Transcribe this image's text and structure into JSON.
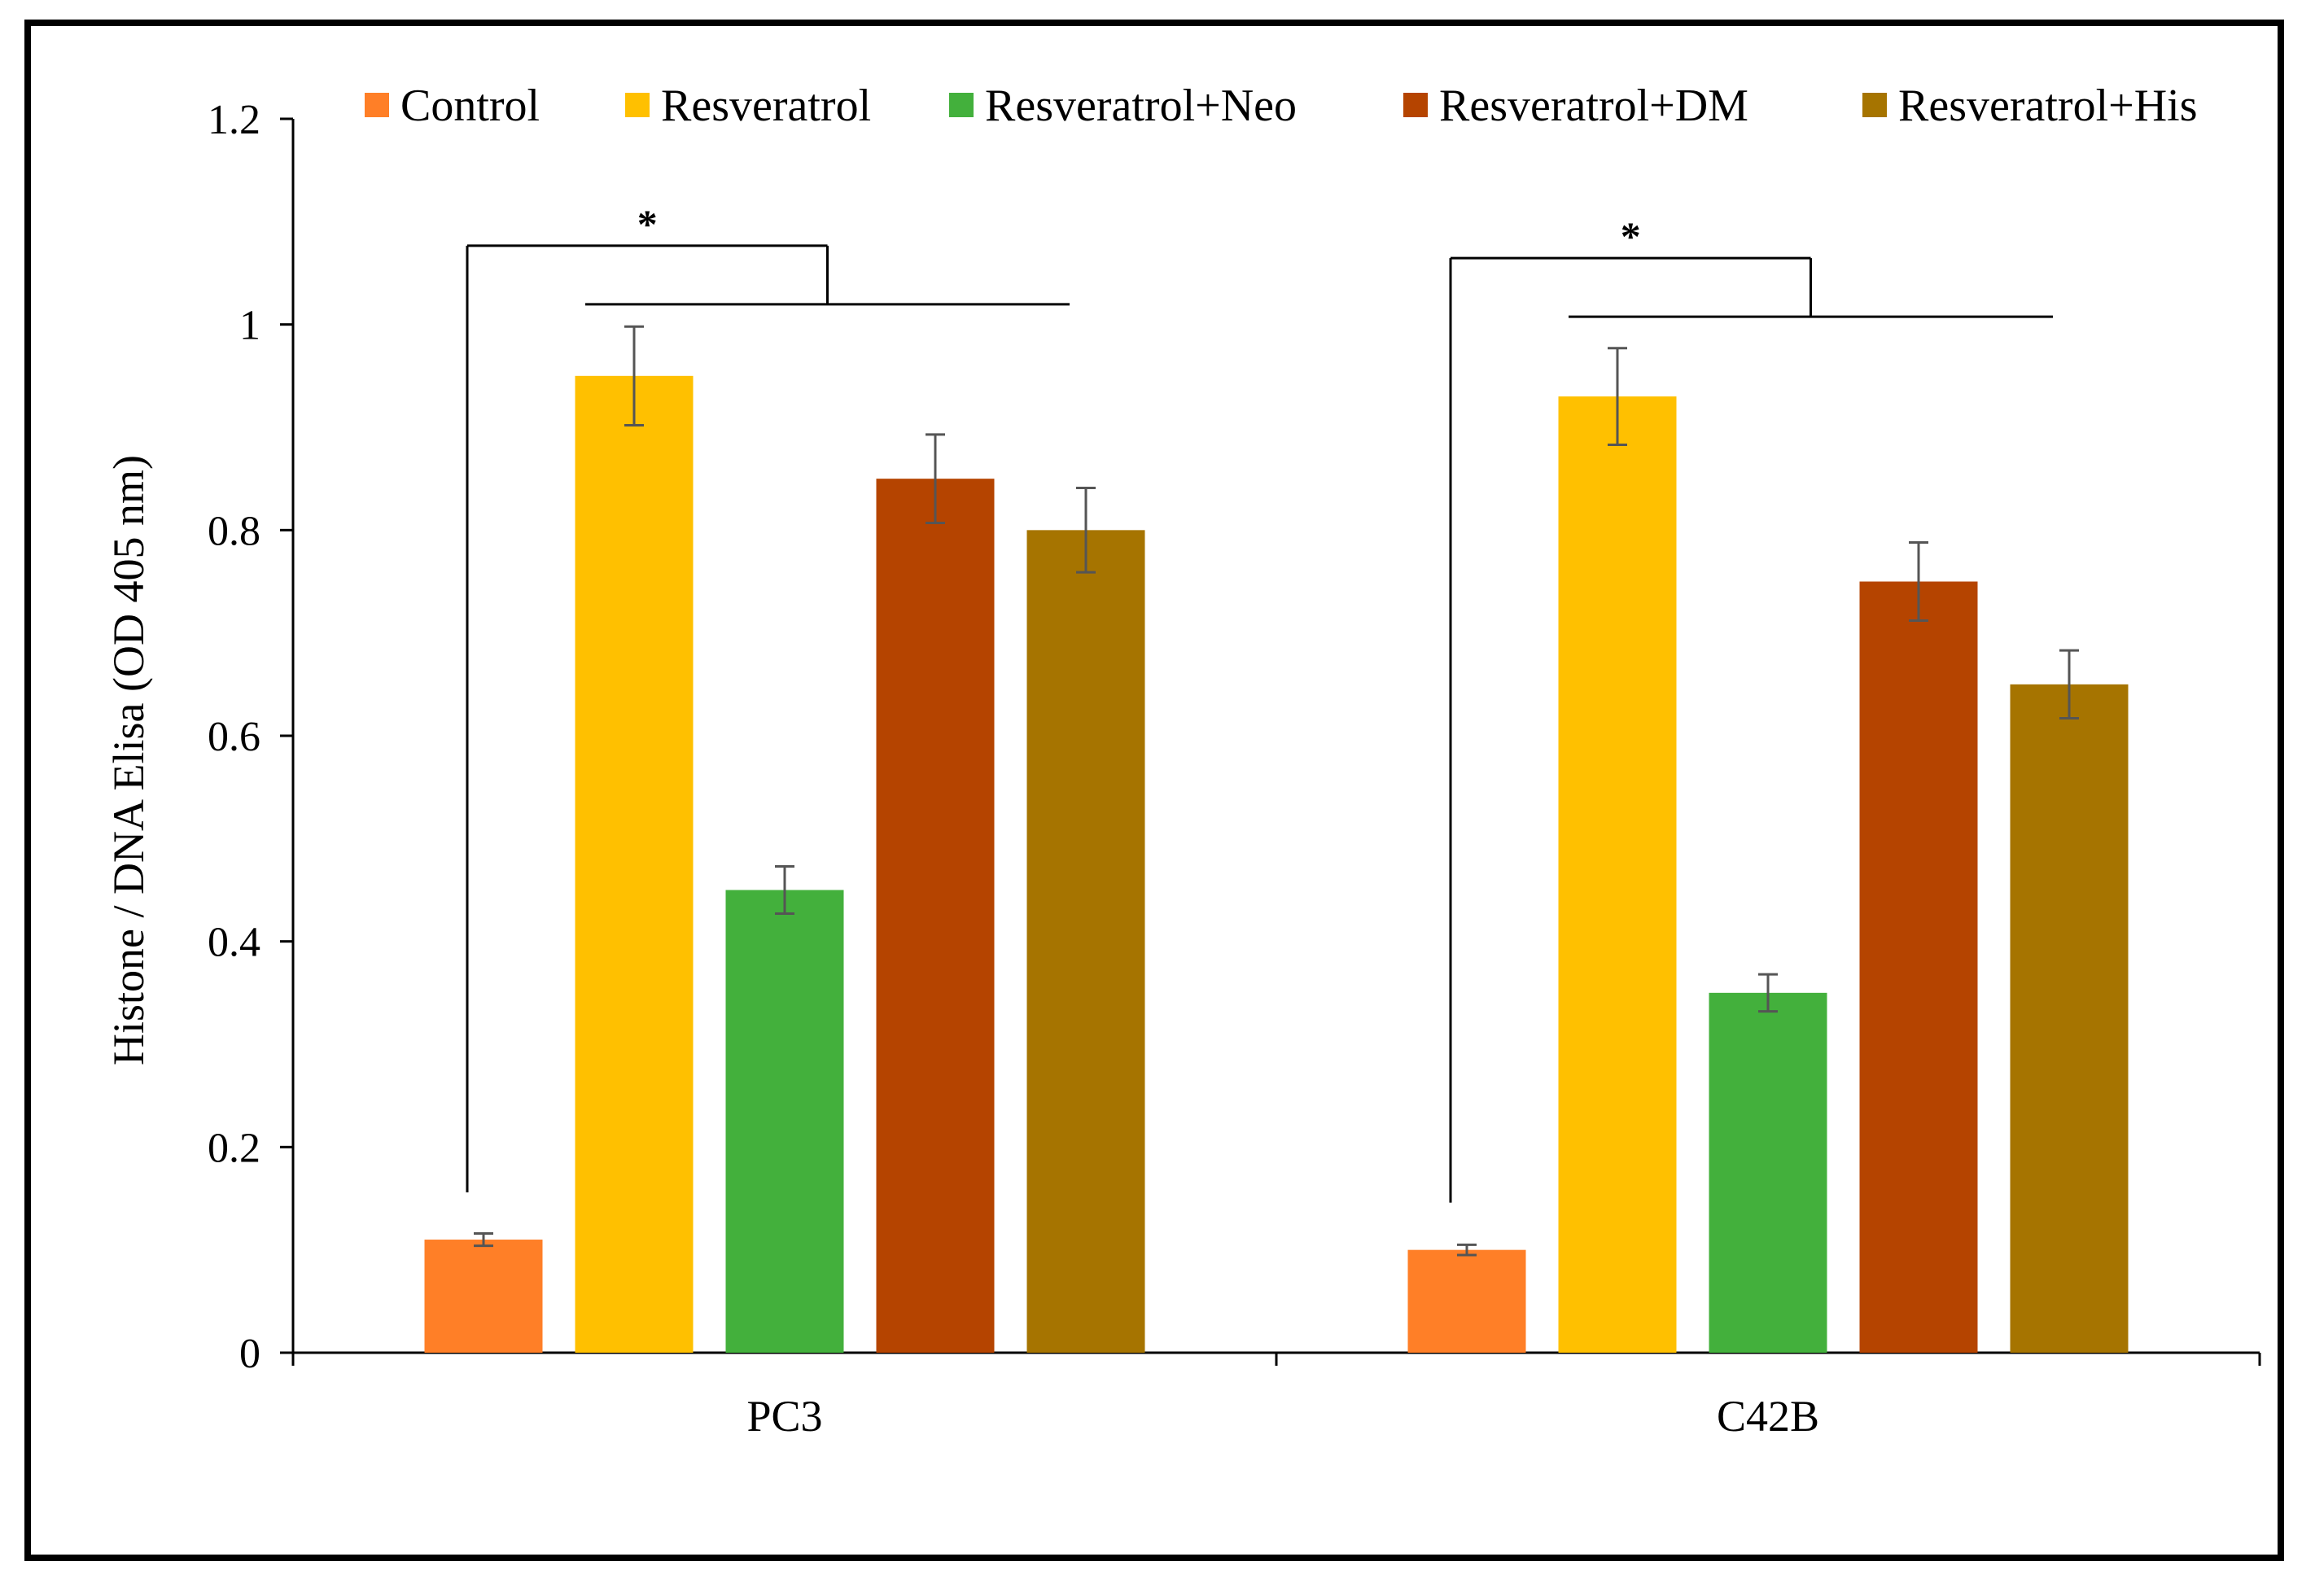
{
  "chart_data": {
    "type": "bar",
    "title": "",
    "xlabel": "",
    "ylabel": "Histone / DNA Elisa (OD 405 nm)",
    "ylim": [
      0,
      1.2
    ],
    "yticks": [
      "0",
      "0.2",
      "0.4",
      "0.6",
      "0.8",
      "1",
      "1.2"
    ],
    "categories": [
      "PC3",
      "C42B"
    ],
    "legend_position": "top",
    "grid": false,
    "series": [
      {
        "name": "Control",
        "color": "#FF7F27",
        "values": [
          0.11,
          0.1
        ],
        "errors": [
          0.006,
          0.005
        ]
      },
      {
        "name": "Resveratrol",
        "color": "#FFC000",
        "values": [
          0.95,
          0.93
        ],
        "errors": [
          0.048,
          0.047
        ]
      },
      {
        "name": "Resveratrol+Neo",
        "color": "#43B03C",
        "values": [
          0.45,
          0.35
        ],
        "errors": [
          0.023,
          0.018
        ]
      },
      {
        "name": "Resveratrol+DM",
        "color": "#B54400",
        "values": [
          0.85,
          0.75
        ],
        "errors": [
          0.043,
          0.038
        ]
      },
      {
        "name": "Resveratrol+His",
        "color": "#A67400",
        "values": [
          0.8,
          0.65
        ],
        "errors": [
          0.041,
          0.033
        ]
      }
    ],
    "significance": [
      {
        "category": "PC3",
        "label": "*"
      },
      {
        "category": "C42B",
        "label": "*"
      }
    ]
  }
}
